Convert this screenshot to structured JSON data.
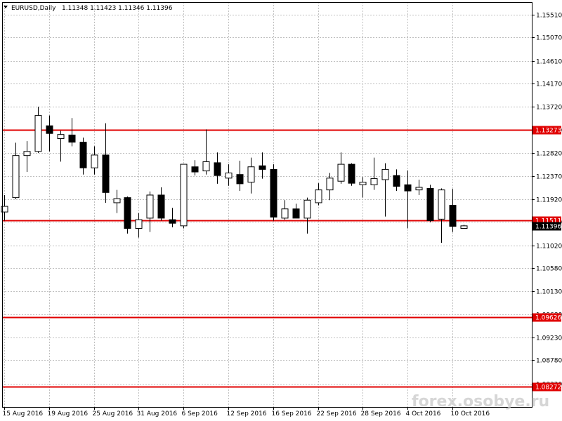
{
  "chart_data": {
    "type": "candlestick",
    "symbol": "EURUSD,Daily",
    "ohlc_header": "1.11348 1.11423 1.11346 1.11396",
    "current_price": 1.11396,
    "current_price_label": "1.11396",
    "ylim": [
      1.0787,
      1.1576
    ],
    "y_ticks": [
      "1.15510",
      "1.15070",
      "1.14610",
      "1.14170",
      "1.13720",
      "1.13270",
      "1.12820",
      "1.12370",
      "1.11920",
      "1.11480",
      "1.11020",
      "1.10580",
      "1.10130",
      "1.09680",
      "1.09230",
      "1.08780",
      "1.08320"
    ],
    "x_tick_labels": [
      {
        "label": "15 Aug 2016",
        "bar": 0
      },
      {
        "label": "19 Aug 2016",
        "bar": 4
      },
      {
        "label": "25 Aug 2016",
        "bar": 8
      },
      {
        "label": "31 Aug 2016",
        "bar": 12
      },
      {
        "label": "6 Sep 2016",
        "bar": 16
      },
      {
        "label": "12 Sep 2016",
        "bar": 20
      },
      {
        "label": "16 Sep 2016",
        "bar": 24
      },
      {
        "label": "22 Sep 2016",
        "bar": 28
      },
      {
        "label": "28 Sep 2016",
        "bar": 32
      },
      {
        "label": "4 Oct 2016",
        "bar": 36
      },
      {
        "label": "10 Oct 2016",
        "bar": 40
      }
    ],
    "levels": [
      {
        "price": 1.13273,
        "label": "1.13273"
      },
      {
        "price": 1.11511,
        "label": "1.11511"
      },
      {
        "price": 1.09626,
        "label": "1.09626"
      },
      {
        "price": 1.08272,
        "label": "1.08272"
      }
    ],
    "candles": [
      {
        "o": 1.1167,
        "h": 1.12,
        "l": 1.115,
        "c": 1.1178
      },
      {
        "o": 1.1195,
        "h": 1.1302,
        "l": 1.1192,
        "c": 1.1277
      },
      {
        "o": 1.1277,
        "h": 1.1305,
        "l": 1.1245,
        "c": 1.1285
      },
      {
        "o": 1.1285,
        "h": 1.1372,
        "l": 1.1282,
        "c": 1.1355
      },
      {
        "o": 1.1335,
        "h": 1.1355,
        "l": 1.1285,
        "c": 1.132
      },
      {
        "o": 1.131,
        "h": 1.1325,
        "l": 1.1265,
        "c": 1.1318
      },
      {
        "o": 1.1317,
        "h": 1.135,
        "l": 1.1295,
        "c": 1.1303
      },
      {
        "o": 1.1303,
        "h": 1.1312,
        "l": 1.124,
        "c": 1.1253
      },
      {
        "o": 1.1253,
        "h": 1.1295,
        "l": 1.124,
        "c": 1.1278
      },
      {
        "o": 1.1278,
        "h": 1.134,
        "l": 1.1185,
        "c": 1.1205
      },
      {
        "o": 1.1185,
        "h": 1.121,
        "l": 1.1165,
        "c": 1.1193
      },
      {
        "o": 1.1195,
        "h": 1.1197,
        "l": 1.1125,
        "c": 1.1135
      },
      {
        "o": 1.1135,
        "h": 1.1165,
        "l": 1.1117,
        "c": 1.1152
      },
      {
        "o": 1.1155,
        "h": 1.1207,
        "l": 1.1128,
        "c": 1.12
      },
      {
        "o": 1.12,
        "h": 1.1215,
        "l": 1.115,
        "c": 1.1155
      },
      {
        "o": 1.1152,
        "h": 1.1175,
        "l": 1.1137,
        "c": 1.1145
      },
      {
        "o": 1.114,
        "h": 1.126,
        "l": 1.1135,
        "c": 1.126
      },
      {
        "o": 1.1255,
        "h": 1.1268,
        "l": 1.1238,
        "c": 1.1245
      },
      {
        "o": 1.1247,
        "h": 1.1328,
        "l": 1.124,
        "c": 1.1265
      },
      {
        "o": 1.1263,
        "h": 1.1283,
        "l": 1.1222,
        "c": 1.1238
      },
      {
        "o": 1.1233,
        "h": 1.126,
        "l": 1.1218,
        "c": 1.1243
      },
      {
        "o": 1.124,
        "h": 1.1267,
        "l": 1.1208,
        "c": 1.1222
      },
      {
        "o": 1.1225,
        "h": 1.1273,
        "l": 1.1203,
        "c": 1.1255
      },
      {
        "o": 1.1257,
        "h": 1.1283,
        "l": 1.1232,
        "c": 1.125
      },
      {
        "o": 1.125,
        "h": 1.126,
        "l": 1.115,
        "c": 1.1157
      },
      {
        "o": 1.1155,
        "h": 1.119,
        "l": 1.1152,
        "c": 1.1173
      },
      {
        "o": 1.1173,
        "h": 1.1183,
        "l": 1.1155,
        "c": 1.1155
      },
      {
        "o": 1.1155,
        "h": 1.1195,
        "l": 1.1125,
        "c": 1.119
      },
      {
        "o": 1.1185,
        "h": 1.1223,
        "l": 1.118,
        "c": 1.121
      },
      {
        "o": 1.121,
        "h": 1.1243,
        "l": 1.119,
        "c": 1.1233
      },
      {
        "o": 1.1227,
        "h": 1.1283,
        "l": 1.1222,
        "c": 1.126
      },
      {
        "o": 1.126,
        "h": 1.1262,
        "l": 1.1218,
        "c": 1.1223
      },
      {
        "o": 1.122,
        "h": 1.1235,
        "l": 1.1195,
        "c": 1.1225
      },
      {
        "o": 1.122,
        "h": 1.1273,
        "l": 1.121,
        "c": 1.1232
      },
      {
        "o": 1.123,
        "h": 1.1262,
        "l": 1.1158,
        "c": 1.125
      },
      {
        "o": 1.1238,
        "h": 1.125,
        "l": 1.1208,
        "c": 1.1217
      },
      {
        "o": 1.122,
        "h": 1.1248,
        "l": 1.1135,
        "c": 1.1208
      },
      {
        "o": 1.121,
        "h": 1.123,
        "l": 1.12,
        "c": 1.1215
      },
      {
        "o": 1.1213,
        "h": 1.122,
        "l": 1.1147,
        "c": 1.115
      },
      {
        "o": 1.1153,
        "h": 1.1213,
        "l": 1.1107,
        "c": 1.121
      },
      {
        "o": 1.118,
        "h": 1.1212,
        "l": 1.1128,
        "c": 1.1139
      },
      {
        "o": 1.1135,
        "h": 1.1142,
        "l": 1.1135,
        "c": 1.114
      }
    ]
  },
  "watermark": "forex.osobye.ru",
  "colors": {
    "background": "#ffffff",
    "grid": "#c0c0c0",
    "level_line": "#e00000",
    "label_bg": "#e00000",
    "candle_bull": "#ffffff",
    "candle_bear": "#000000",
    "current_label_bg": "#000000"
  }
}
